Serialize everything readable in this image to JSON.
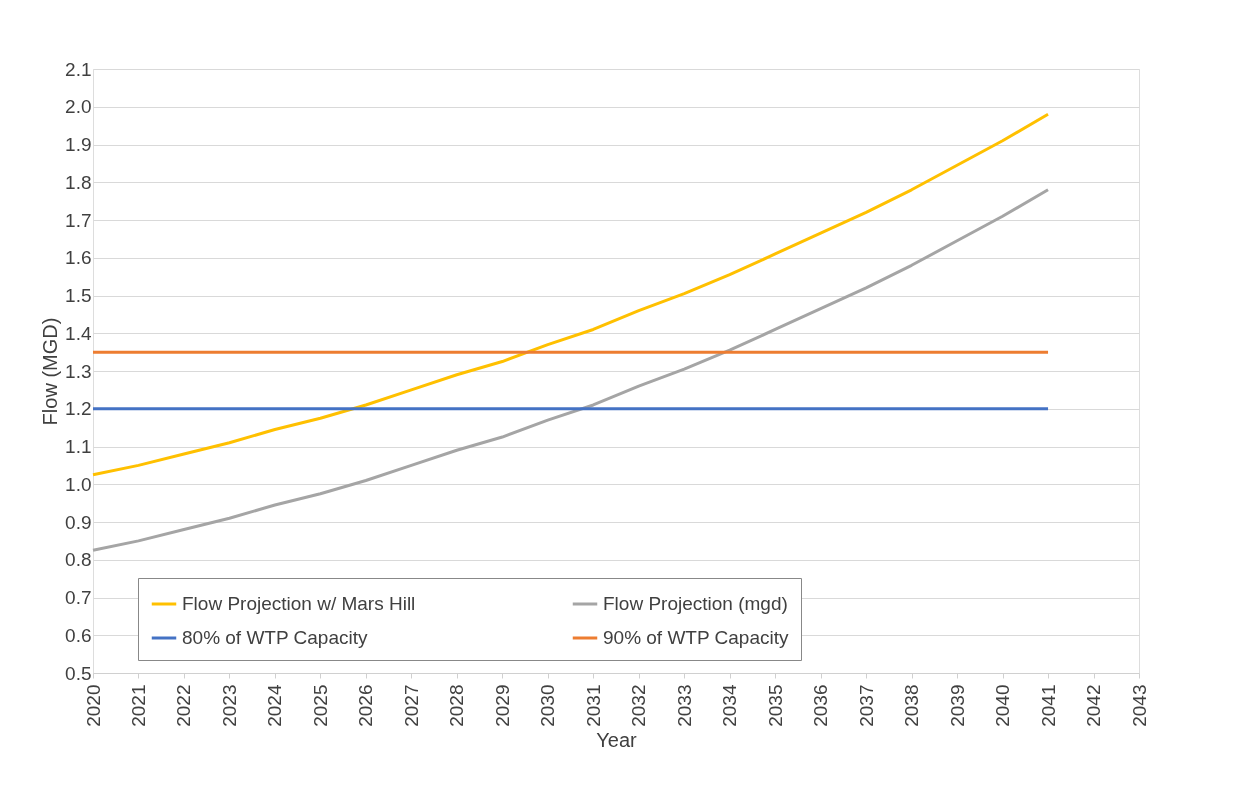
{
  "chart_data": {
    "type": "line",
    "xlabel": "Year",
    "ylabel": "Flow (MGD)",
    "x": [
      2020,
      2021,
      2022,
      2023,
      2024,
      2025,
      2026,
      2027,
      2028,
      2029,
      2030,
      2031,
      2032,
      2033,
      2034,
      2035,
      2036,
      2037,
      2038,
      2039,
      2040,
      2041
    ],
    "series": [
      {
        "name": "Flow Projection w/ Mars Hill",
        "color": "#ffc000",
        "values": [
          1.025,
          1.05,
          1.08,
          1.11,
          1.145,
          1.175,
          1.21,
          1.25,
          1.29,
          1.325,
          1.37,
          1.41,
          1.46,
          1.505,
          1.555,
          1.61,
          1.665,
          1.72,
          1.78,
          1.845,
          1.91,
          1.98
        ]
      },
      {
        "name": "Flow Projection (mgd)",
        "color": "#a5a5a5",
        "values": [
          0.825,
          0.85,
          0.88,
          0.91,
          0.945,
          0.975,
          1.01,
          1.05,
          1.09,
          1.125,
          1.17,
          1.21,
          1.26,
          1.305,
          1.355,
          1.41,
          1.465,
          1.52,
          1.58,
          1.645,
          1.71,
          1.78
        ]
      },
      {
        "name": "80% of WTP Capacity",
        "color": "#4472c4",
        "values": [
          1.2,
          1.2,
          1.2,
          1.2,
          1.2,
          1.2,
          1.2,
          1.2,
          1.2,
          1.2,
          1.2,
          1.2,
          1.2,
          1.2,
          1.2,
          1.2,
          1.2,
          1.2,
          1.2,
          1.2,
          1.2,
          1.2
        ]
      },
      {
        "name": "90% of WTP Capacity",
        "color": "#ed7d31",
        "values": [
          1.35,
          1.35,
          1.35,
          1.35,
          1.35,
          1.35,
          1.35,
          1.35,
          1.35,
          1.35,
          1.35,
          1.35,
          1.35,
          1.35,
          1.35,
          1.35,
          1.35,
          1.35,
          1.35,
          1.35,
          1.35,
          1.35
        ]
      }
    ],
    "xlim": [
      2020,
      2043
    ],
    "xticks": [
      2020,
      2021,
      2022,
      2023,
      2024,
      2025,
      2026,
      2027,
      2028,
      2029,
      2030,
      2031,
      2032,
      2033,
      2034,
      2035,
      2036,
      2037,
      2038,
      2039,
      2040,
      2041,
      2042,
      2043
    ],
    "ylim": [
      0.5,
      2.1
    ],
    "yticks": [
      {
        "value": 0.5,
        "label": "0.5"
      },
      {
        "value": 0.6,
        "label": "0.6"
      },
      {
        "value": 0.7,
        "label": "0.7"
      },
      {
        "value": 0.8,
        "label": "0.8"
      },
      {
        "value": 0.9,
        "label": "0.9"
      },
      {
        "value": 1.0,
        "label": "1.0"
      },
      {
        "value": 1.1,
        "label": "1.1"
      },
      {
        "value": 1.2,
        "label": "1.2"
      },
      {
        "value": 1.3,
        "label": "1.3"
      },
      {
        "value": 1.4,
        "label": "1.4"
      },
      {
        "value": 1.5,
        "label": "1.5"
      },
      {
        "value": 1.6,
        "label": "1.6"
      },
      {
        "value": 1.7,
        "label": "1.7"
      },
      {
        "value": 1.8,
        "label": "1.8"
      },
      {
        "value": 1.9,
        "label": "1.9"
      },
      {
        "value": 2.0,
        "label": "2.0"
      },
      {
        "value": 2.1,
        "label": "2.1"
      }
    ],
    "grid": "y",
    "legend": "bottom",
    "marker": "none",
    "line_style": "solid"
  }
}
